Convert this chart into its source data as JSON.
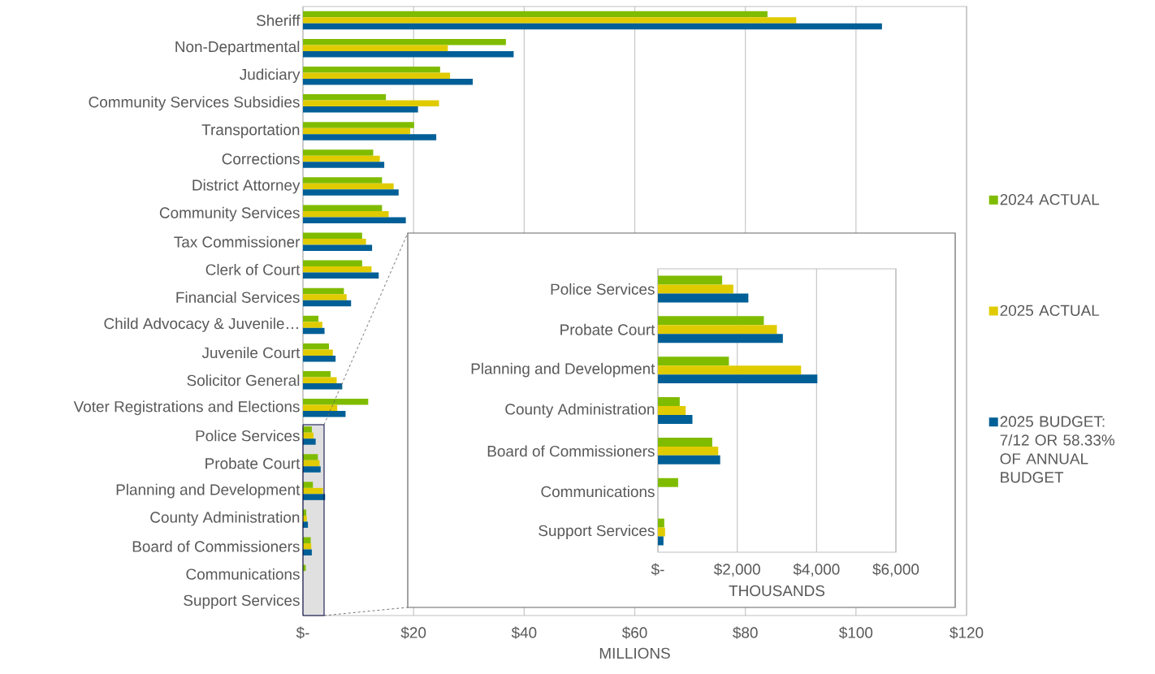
{
  "chart_data": [
    {
      "type": "bar",
      "orientation": "horizontal",
      "xlabel": "MILLIONS",
      "grid": "x",
      "legend": "right",
      "categories": [
        "Sheriff",
        "Non-Departmental",
        "Judiciary",
        "Community Services Subsidies",
        "Transportation",
        "Corrections",
        "District Attorney",
        "Community Services",
        "Tax Commissioner",
        "Clerk of Court",
        "Financial Services",
        "Child Advocacy & Juvenile…",
        "Juvenile Court",
        "Solicitor General",
        "Voter Registrations and Elections",
        "Police Services",
        "Probate Court",
        "Planning and Development",
        "County Administration",
        "Board of Commissioners",
        "Communications",
        "Support Services"
      ],
      "series": [
        {
          "name": "2024 ACTUAL",
          "color": "#7fbc00",
          "values": [
            84.0,
            36.7,
            24.8,
            15.0,
            20.1,
            12.7,
            14.3,
            14.3,
            10.7,
            10.7,
            7.4,
            2.8,
            4.7,
            5.0,
            11.8,
            1.6,
            2.7,
            1.8,
            0.6,
            1.4,
            0.5,
            null
          ]
        },
        {
          "name": "2025 ACTUAL",
          "color": "#e0cb00",
          "values": [
            89.2,
            26.2,
            26.6,
            24.6,
            19.4,
            13.9,
            16.4,
            15.5,
            11.4,
            12.4,
            7.9,
            3.5,
            5.4,
            6.1,
            6.2,
            1.9,
            3.0,
            3.6,
            0.7,
            1.5,
            null,
            null
          ]
        },
        {
          "name": "2025 BUDGET: 7/12 OR 58.33% OF ANNUAL BUDGET",
          "color": "#005f96",
          "values": [
            104.7,
            38.1,
            30.7,
            20.8,
            24.1,
            14.7,
            17.3,
            18.6,
            12.5,
            13.7,
            8.7,
            3.9,
            5.9,
            7.1,
            7.7,
            2.3,
            3.2,
            4.0,
            0.9,
            1.6,
            null,
            null
          ]
        }
      ],
      "xlim": [
        0,
        120
      ],
      "xticks": [
        {
          "value": 0,
          "label": "$-"
        },
        {
          "value": 20,
          "label": "$20"
        },
        {
          "value": 40,
          "label": "$40"
        },
        {
          "value": 60,
          "label": "$60"
        },
        {
          "value": 80,
          "label": "$80"
        },
        {
          "value": 100,
          "label": "$100"
        },
        {
          "value": 120,
          "label": "$120"
        }
      ]
    },
    {
      "type": "bar",
      "orientation": "horizontal",
      "xlabel": "THOUSANDS",
      "grid": "x",
      "categories": [
        "Police Services",
        "Probate Court",
        "Planning and Development",
        "County Administration",
        "Board of Commissioners",
        "Communications",
        "Support Services"
      ],
      "series": [
        {
          "color": "#7fbc00",
          "values": [
            1620,
            2670,
            1790,
            550,
            1370,
            510,
            160
          ]
        },
        {
          "color": "#e0cb00",
          "values": [
            1900,
            3000,
            3610,
            700,
            1520,
            null,
            180
          ]
        },
        {
          "color": "#005f96",
          "values": [
            2280,
            3150,
            4020,
            870,
            1570,
            null,
            140
          ]
        }
      ],
      "xlim": [
        0,
        6000
      ],
      "xticks": [
        {
          "value": 0,
          "label": "$-"
        },
        {
          "value": 2000,
          "label": "$2,000"
        },
        {
          "value": 4000,
          "label": "$4,000"
        },
        {
          "value": 6000,
          "label": "$6,000"
        }
      ]
    }
  ]
}
